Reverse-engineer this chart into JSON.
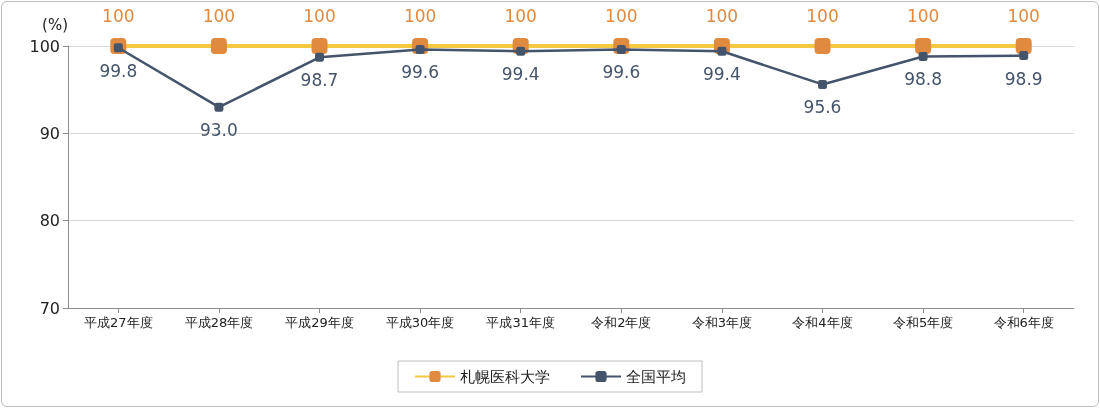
{
  "chart_data": {
    "type": "line",
    "ylabel": "(%)",
    "categories": [
      "平成27年度",
      "平成28年度",
      "平成29年度",
      "平成30年度",
      "平成31年度",
      "令和2年度",
      "令和3年度",
      "令和4年度",
      "令和5年度",
      "令和6年度"
    ],
    "series": [
      {
        "name": "札幌医科大学",
        "color": "#f5c842",
        "colors": [
          "#e08a40",
          "#e08a40",
          "#e08a40",
          "#e08a40",
          "#e08a40",
          "#e08a40",
          "#e08a40",
          "#e08a40",
          "#e08a40",
          "#e08a40"
        ],
        "values": [
          100,
          100,
          100,
          100,
          100,
          100,
          100,
          100,
          100,
          100
        ],
        "value_labels": [
          "100",
          "100",
          "100",
          "100",
          "100",
          "100",
          "100",
          "100",
          "100",
          "100"
        ]
      },
      {
        "name": "全国平均",
        "color": "#44546a",
        "values": [
          99.8,
          93.0,
          98.7,
          99.6,
          99.4,
          99.6,
          99.4,
          95.6,
          98.8,
          98.9
        ],
        "value_labels": [
          "99.8",
          "93.0",
          "98.7",
          "99.6",
          "99.4",
          "99.6",
          "99.4",
          "95.6",
          "98.8",
          "98.9"
        ]
      }
    ],
    "ylim": [
      70,
      100
    ],
    "yticks": [
      70,
      80,
      90,
      100
    ],
    "grid": "y",
    "legend": "bottom",
    "marker": "square",
    "line_style": "solid"
  }
}
